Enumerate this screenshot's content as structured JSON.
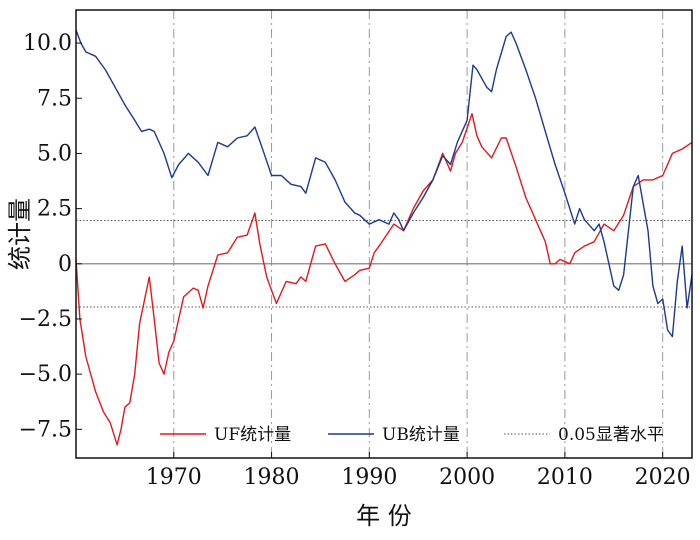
{
  "chart_data": {
    "type": "line",
    "xlabel": "年 份",
    "ylabel": "统计量",
    "xlim": [
      1960,
      2023
    ],
    "ylim": [
      -8.8,
      11.5
    ],
    "x_ticks": [
      1970,
      1980,
      1990,
      2000,
      2010,
      2020
    ],
    "x_tick_labels": [
      "1970",
      "1980",
      "1990",
      "2000",
      "2010",
      "2020"
    ],
    "y_ticks": [
      -7.5,
      -5.0,
      -2.5,
      0,
      2.5,
      5.0,
      7.5,
      10.0
    ],
    "y_tick_labels": [
      "−7.5",
      "−5.0",
      "−2.5",
      "0",
      "2.5",
      "5.0",
      "7.5",
      "10.0"
    ],
    "vertical_gridlines": [
      1970,
      1980,
      1990,
      2000,
      2010,
      2020
    ],
    "reference_lines": [
      {
        "y": 1.96,
        "style": "dotted"
      },
      {
        "y": 0,
        "style": "solid"
      },
      {
        "y": -1.96,
        "style": "dotted"
      }
    ],
    "legend_placement": "bottom",
    "legend": [
      {
        "label": "UF统计量",
        "color": "#e0191c",
        "style": "solid"
      },
      {
        "label": "UB统计量",
        "color": "#1a3a8f",
        "style": "solid"
      },
      {
        "label": "0.05显著水平",
        "color": "#555555",
        "style": "dotted"
      }
    ],
    "series": [
      {
        "name": "UF统计量",
        "color": "#e0191c",
        "points": [
          [
            1960,
            0.2
          ],
          [
            1960.4,
            -2.5
          ],
          [
            1961,
            -4.2
          ],
          [
            1962,
            -5.8
          ],
          [
            1962.8,
            -6.7
          ],
          [
            1963.5,
            -7.2
          ],
          [
            1964.2,
            -8.2
          ],
          [
            1964.6,
            -7.5
          ],
          [
            1965,
            -6.5
          ],
          [
            1965.5,
            -6.3
          ],
          [
            1966,
            -5.0
          ],
          [
            1966.5,
            -2.7
          ],
          [
            1967.5,
            -0.6
          ],
          [
            1968,
            -2.5
          ],
          [
            1968.5,
            -4.5
          ],
          [
            1969,
            -5.0
          ],
          [
            1969.5,
            -4.0
          ],
          [
            1970,
            -3.5
          ],
          [
            1971,
            -1.5
          ],
          [
            1972,
            -1.1
          ],
          [
            1972.5,
            -1.2
          ],
          [
            1973,
            -2.0
          ],
          [
            1973.5,
            -1.0
          ],
          [
            1974.5,
            0.4
          ],
          [
            1975.5,
            0.5
          ],
          [
            1976.5,
            1.2
          ],
          [
            1977.5,
            1.3
          ],
          [
            1978.3,
            2.3
          ],
          [
            1978.8,
            0.9
          ],
          [
            1979.5,
            -0.6
          ],
          [
            1980.5,
            -1.8
          ],
          [
            1981.5,
            -0.8
          ],
          [
            1982.5,
            -0.9
          ],
          [
            1983,
            -0.6
          ],
          [
            1983.5,
            -0.8
          ],
          [
            1984.5,
            0.8
          ],
          [
            1985.5,
            0.9
          ],
          [
            1986.5,
            0.0
          ],
          [
            1987.5,
            -0.8
          ],
          [
            1988.5,
            -0.5
          ],
          [
            1989,
            -0.3
          ],
          [
            1990,
            -0.2
          ],
          [
            1990.5,
            0.5
          ],
          [
            1991,
            0.8
          ],
          [
            1992.5,
            1.8
          ],
          [
            1993.5,
            1.5
          ],
          [
            1994.5,
            2.5
          ],
          [
            1995.5,
            3.3
          ],
          [
            1996.5,
            3.8
          ],
          [
            1997.5,
            5.0
          ],
          [
            1998.3,
            4.2
          ],
          [
            1998.8,
            5.0
          ],
          [
            1999.5,
            5.5
          ],
          [
            2000.5,
            6.8
          ],
          [
            2001,
            5.8
          ],
          [
            2001.5,
            5.3
          ],
          [
            2002.5,
            4.8
          ],
          [
            2003.5,
            5.7
          ],
          [
            2004,
            5.7
          ],
          [
            2005,
            4.4
          ],
          [
            2006,
            3.0
          ],
          [
            2007,
            2.0
          ],
          [
            2008,
            1.0
          ],
          [
            2008.5,
            0.0
          ],
          [
            2009,
            0.0
          ],
          [
            2009.5,
            0.2
          ],
          [
            2010.5,
            0.0
          ],
          [
            2011,
            0.5
          ],
          [
            2012,
            0.8
          ],
          [
            2013,
            1.0
          ],
          [
            2014,
            1.8
          ],
          [
            2015,
            1.5
          ],
          [
            2016,
            2.2
          ],
          [
            2017,
            3.5
          ],
          [
            2018,
            3.8
          ],
          [
            2019,
            3.8
          ],
          [
            2020,
            4.0
          ],
          [
            2020.5,
            4.5
          ],
          [
            2021,
            5.0
          ],
          [
            2022,
            5.2
          ],
          [
            2023,
            5.5
          ]
        ]
      },
      {
        "name": "UB统计量",
        "color": "#1a3a8f",
        "points": [
          [
            1960,
            10.6
          ],
          [
            1960.5,
            10.0
          ],
          [
            1961,
            9.6
          ],
          [
            1962,
            9.4
          ],
          [
            1963,
            8.8
          ],
          [
            1964,
            8.0
          ],
          [
            1965,
            7.2
          ],
          [
            1966,
            6.5
          ],
          [
            1966.7,
            6.0
          ],
          [
            1967.5,
            6.1
          ],
          [
            1968,
            6.0
          ],
          [
            1969,
            5.0
          ],
          [
            1969.8,
            3.9
          ],
          [
            1970.5,
            4.5
          ],
          [
            1971.5,
            5.0
          ],
          [
            1972.5,
            4.6
          ],
          [
            1973.5,
            4.0
          ],
          [
            1974.5,
            5.5
          ],
          [
            1975.5,
            5.3
          ],
          [
            1976.5,
            5.7
          ],
          [
            1977.5,
            5.8
          ],
          [
            1978.3,
            6.2
          ],
          [
            1979,
            5.3
          ],
          [
            1980,
            4.0
          ],
          [
            1981,
            4.0
          ],
          [
            1982,
            3.6
          ],
          [
            1983,
            3.5
          ],
          [
            1983.5,
            3.2
          ],
          [
            1984.5,
            4.8
          ],
          [
            1985.5,
            4.6
          ],
          [
            1986.5,
            3.8
          ],
          [
            1987.5,
            2.8
          ],
          [
            1988.5,
            2.3
          ],
          [
            1989,
            2.2
          ],
          [
            1990,
            1.8
          ],
          [
            1991,
            2.0
          ],
          [
            1992,
            1.8
          ],
          [
            1992.5,
            2.3
          ],
          [
            1993,
            2.0
          ],
          [
            1993.5,
            1.5
          ],
          [
            1994.5,
            2.3
          ],
          [
            1995.5,
            3.0
          ],
          [
            1996.5,
            3.8
          ],
          [
            1997.5,
            4.9
          ],
          [
            1998.3,
            4.5
          ],
          [
            1999,
            5.5
          ],
          [
            2000,
            6.5
          ],
          [
            2000.6,
            9.0
          ],
          [
            2001,
            8.8
          ],
          [
            2002,
            8.0
          ],
          [
            2002.5,
            7.8
          ],
          [
            2003,
            8.8
          ],
          [
            2004,
            10.3
          ],
          [
            2004.5,
            10.5
          ],
          [
            2005,
            10.0
          ],
          [
            2006,
            8.8
          ],
          [
            2007,
            7.5
          ],
          [
            2008,
            6.0
          ],
          [
            2009,
            4.5
          ],
          [
            2010,
            3.2
          ],
          [
            2011,
            1.8
          ],
          [
            2011.5,
            2.5
          ],
          [
            2012,
            2.0
          ],
          [
            2013,
            1.5
          ],
          [
            2013.5,
            1.8
          ],
          [
            2014,
            1.0
          ],
          [
            2015,
            -1.0
          ],
          [
            2015.5,
            -1.2
          ],
          [
            2016,
            -0.5
          ],
          [
            2017,
            3.5
          ],
          [
            2017.5,
            4.0
          ],
          [
            2018.5,
            1.5
          ],
          [
            2019,
            -1.0
          ],
          [
            2019.5,
            -1.8
          ],
          [
            2020,
            -1.6
          ],
          [
            2020.5,
            -3.0
          ],
          [
            2021,
            -3.3
          ],
          [
            2021.5,
            -0.8
          ],
          [
            2022,
            0.8
          ],
          [
            2022.5,
            -2.0
          ],
          [
            2023,
            -0.5
          ]
        ]
      }
    ]
  }
}
